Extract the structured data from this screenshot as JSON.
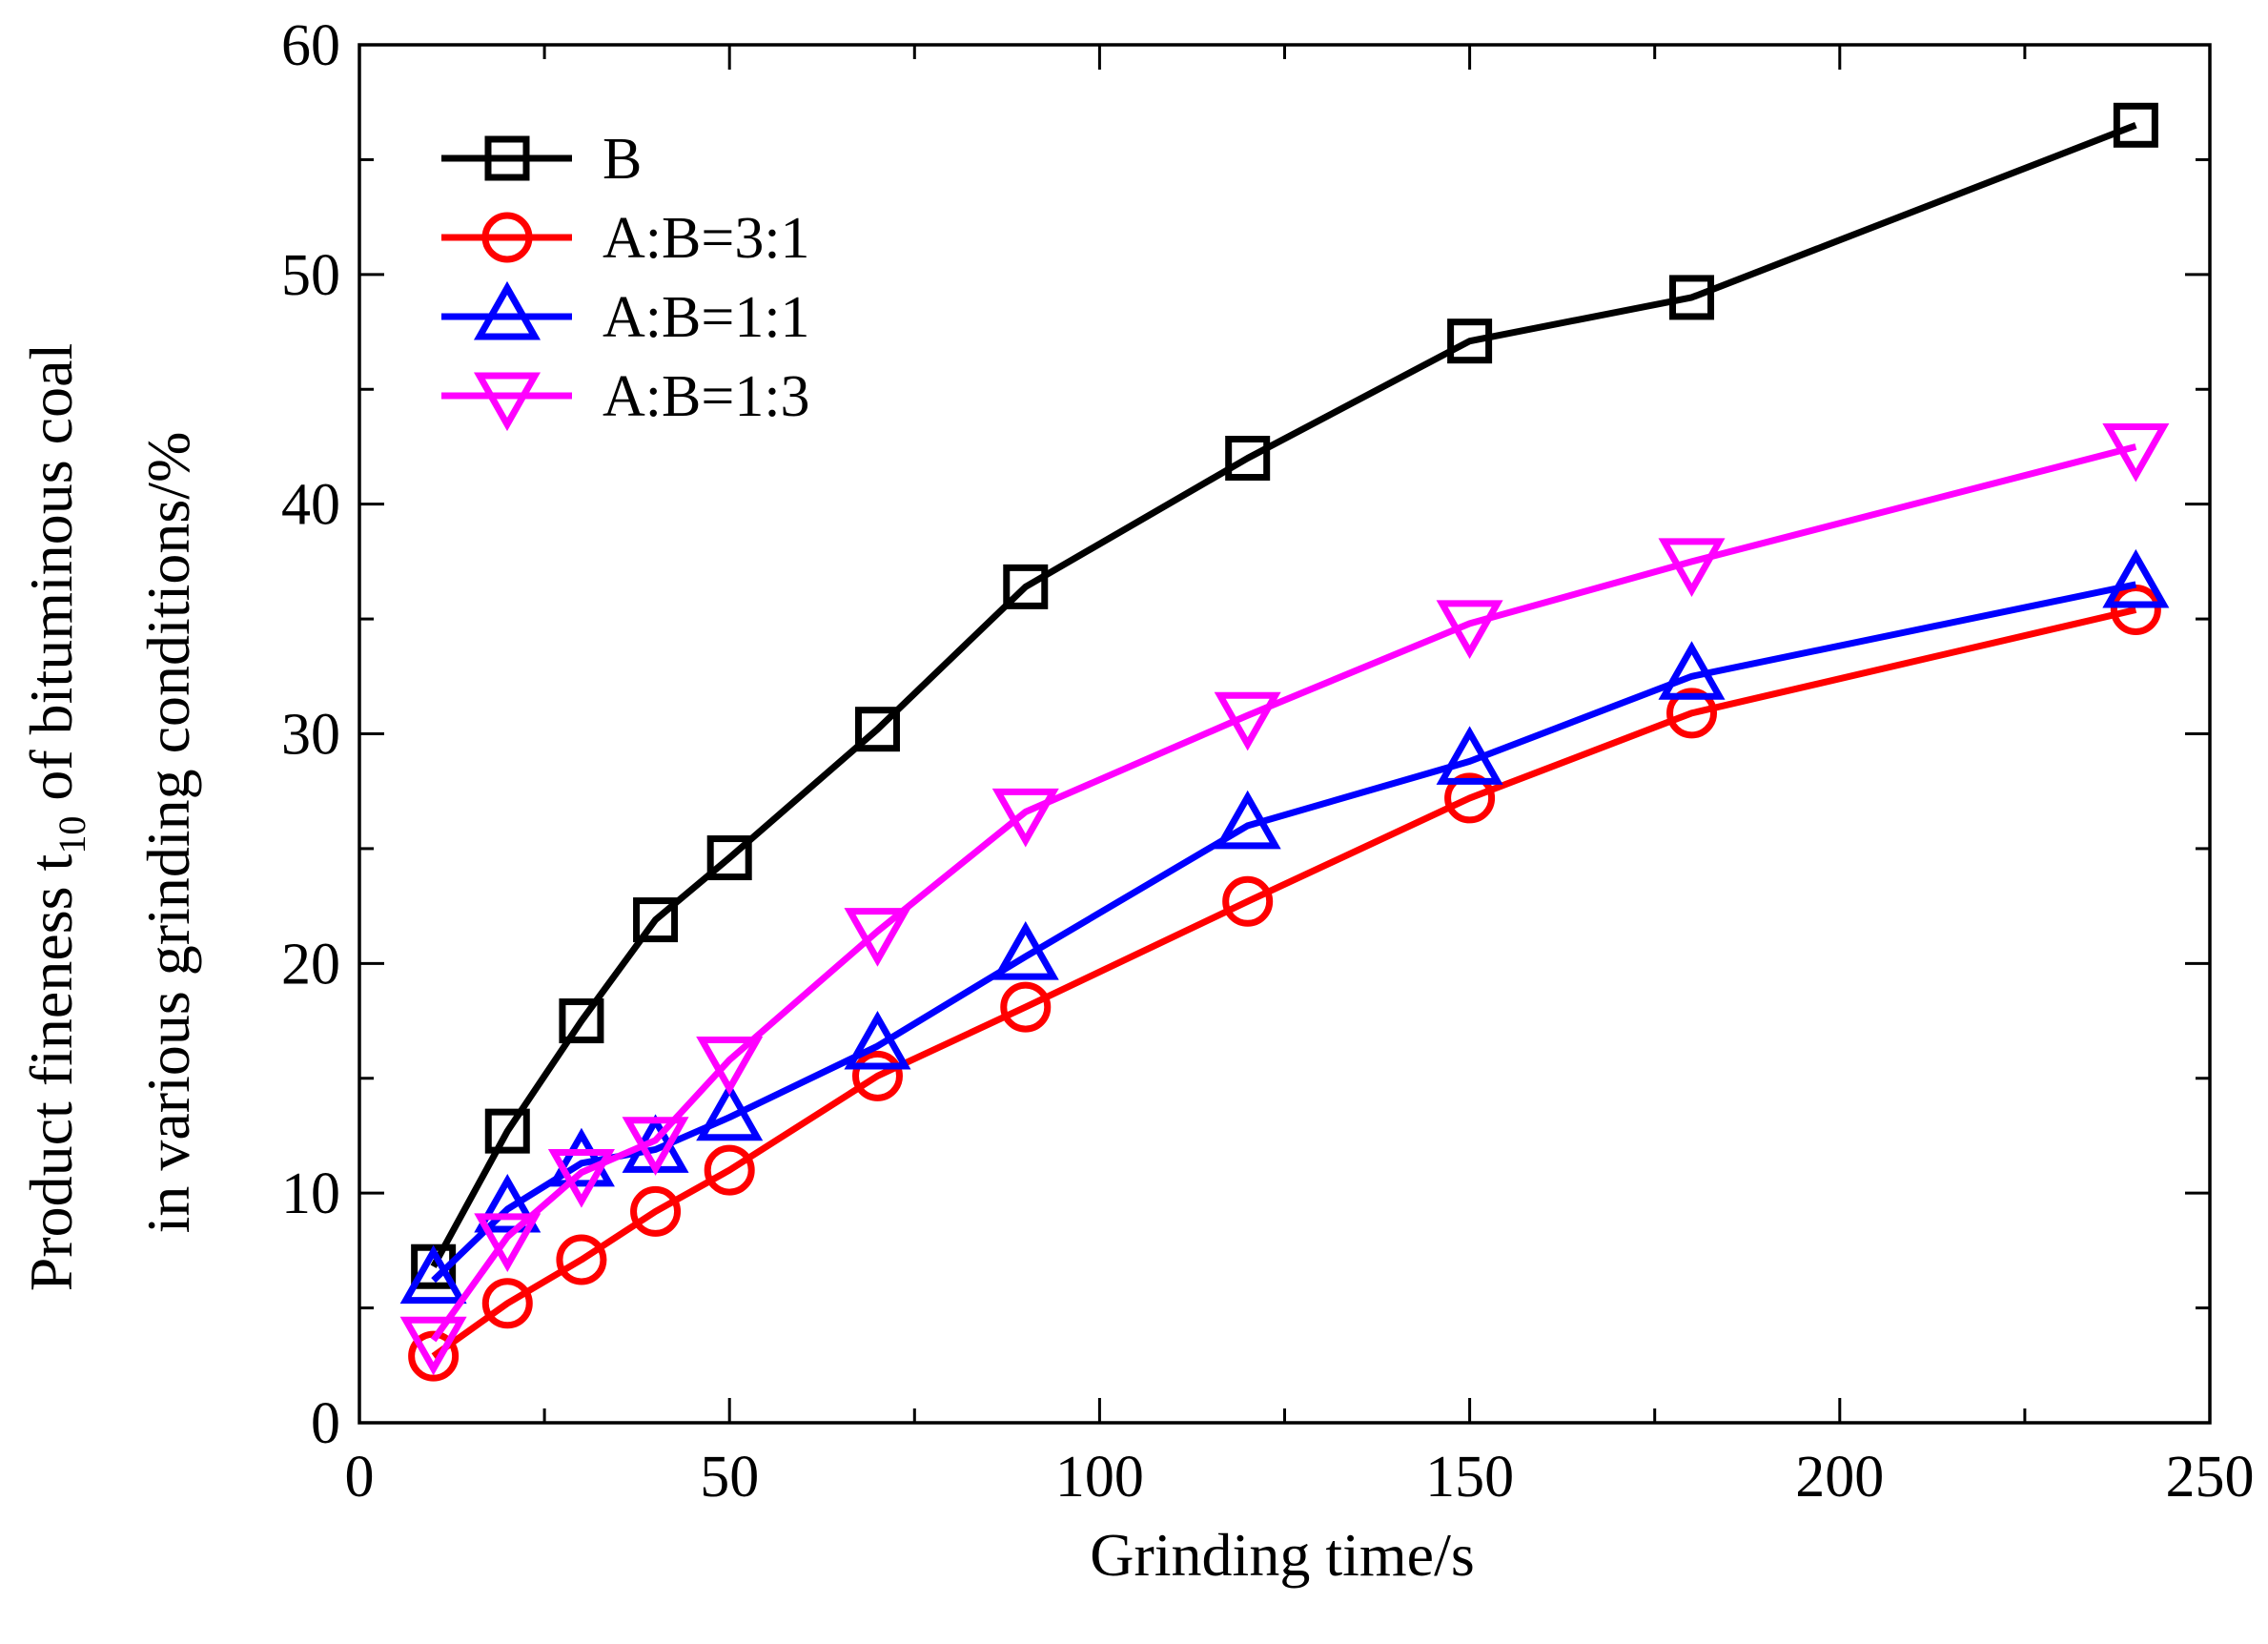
{
  "chart_data": {
    "type": "line",
    "title": "",
    "xlabel": "Grinding time/s",
    "ylabel": {
      "line1_pre": "Product fineness t",
      "line1_sub": "10",
      "line1_post": " of bituminous coal",
      "line2": "in various grinding conditions/%"
    },
    "xlim": [
      0,
      250
    ],
    "ylim": [
      0,
      60
    ],
    "x_ticks": [
      "0",
      "50",
      "100",
      "150",
      "200",
      "250"
    ],
    "y_ticks": [
      "0",
      "10",
      "20",
      "30",
      "40",
      "50",
      "60"
    ],
    "grid": false,
    "legend_position": "top-left",
    "series": [
      {
        "name": "B",
        "marker": "square",
        "color": "#000000",
        "x": [
          10,
          20,
          30,
          40,
          50,
          70,
          90,
          120,
          150,
          180,
          240
        ],
        "values": [
          6.8,
          12.7,
          17.5,
          21.9,
          24.6,
          30.2,
          36.4,
          42.0,
          47.1,
          49.0,
          56.5
        ]
      },
      {
        "name": "A:B=3:1",
        "marker": "circle",
        "color": "#ff0000",
        "x": [
          10,
          20,
          30,
          40,
          50,
          70,
          90,
          120,
          150,
          180,
          240
        ],
        "values": [
          2.9,
          5.2,
          7.1,
          9.2,
          11.0,
          15.1,
          18.1,
          22.7,
          27.2,
          30.9,
          35.4
        ]
      },
      {
        "name": "A:B=1:1",
        "marker": "triangle-up",
        "color": "#0000ff",
        "x": [
          10,
          20,
          30,
          40,
          50,
          70,
          90,
          120,
          150,
          180,
          240
        ],
        "values": [
          6.2,
          9.3,
          11.3,
          11.9,
          13.3,
          16.4,
          20.3,
          26.0,
          28.8,
          32.5,
          36.5
        ]
      },
      {
        "name": "A:B=1:3",
        "marker": "triangle-down",
        "color": "#ff00ff",
        "x": [
          10,
          20,
          30,
          40,
          50,
          70,
          90,
          120,
          150,
          180,
          240
        ],
        "values": [
          3.6,
          8.1,
          10.9,
          12.3,
          15.8,
          21.4,
          26.6,
          30.8,
          34.8,
          37.5,
          42.5
        ]
      }
    ]
  }
}
